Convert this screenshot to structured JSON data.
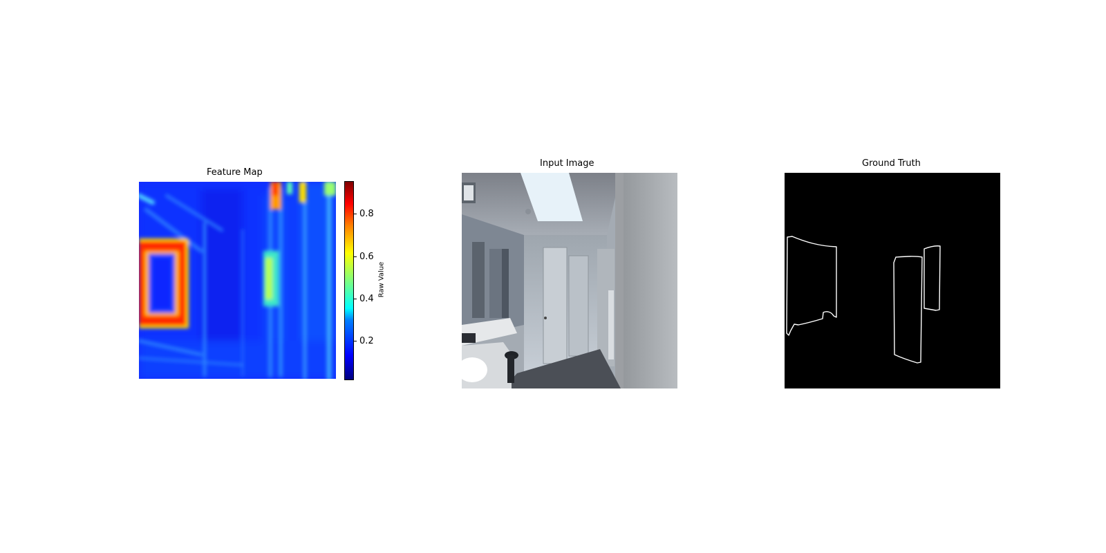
{
  "panels": {
    "feature_map": {
      "title": "Feature Map"
    },
    "input_image": {
      "title": "Input Image"
    },
    "ground_truth": {
      "title": "Ground Truth"
    }
  },
  "colorbar": {
    "label": "Raw Value",
    "ticks": [
      "0.2",
      "0.4",
      "0.6",
      "0.8"
    ],
    "colormap": "jet",
    "range": [
      0.02,
      0.95
    ]
  },
  "colors": {
    "background": "#ffffff",
    "ground_truth_bg": "#000000",
    "ground_truth_outline": "#ffffff"
  }
}
